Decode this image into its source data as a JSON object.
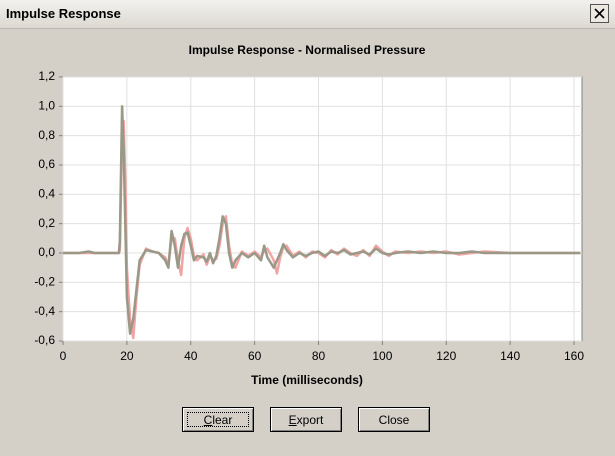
{
  "window": {
    "title": "Impulse Response"
  },
  "chart_data": {
    "type": "line",
    "title": "Impulse Response - Normalised Pressure",
    "x_label": "Time (milliseconds)",
    "x": [
      0,
      5,
      8,
      10,
      17.5,
      17.8,
      18.5,
      19,
      19.5,
      20,
      21,
      22,
      23,
      24,
      26,
      28,
      30,
      32,
      33,
      34,
      35,
      36,
      37,
      38,
      39,
      40,
      41,
      42,
      44,
      45,
      46,
      47,
      48,
      49,
      50,
      51,
      52,
      53,
      54,
      56,
      58,
      60,
      62,
      63,
      64,
      66,
      67,
      68,
      69,
      70,
      72,
      74,
      76,
      78,
      80,
      82,
      84,
      86,
      88,
      90,
      92,
      94,
      96,
      98,
      100,
      102,
      104,
      108,
      112,
      116,
      120,
      124,
      128,
      132,
      140,
      162
    ],
    "series": [
      {
        "color": "#f2a3a3",
        "values": [
          0,
          0,
          0,
          0,
          0,
          0.02,
          0.8,
          0.9,
          0.5,
          -0.1,
          -0.45,
          -0.58,
          -0.3,
          -0.08,
          0.03,
          0.01,
          0,
          -0.03,
          -0.08,
          0.1,
          0.1,
          -0.05,
          -0.15,
          0.1,
          0.17,
          0.1,
          -0.02,
          -0.05,
          -0.01,
          -0.08,
          -0.02,
          -0.05,
          -0.04,
          0.05,
          0.2,
          0.25,
          0.05,
          -0.08,
          -0.1,
          0.01,
          -0.02,
          0.01,
          -0.03,
          0.02,
          0.03,
          -0.05,
          -0.14,
          -0.03,
          0.04,
          0.05,
          -0.02,
          0.01,
          -0.03,
          0.01,
          0,
          -0.03,
          0.02,
          -0.01,
          0.03,
          0,
          -0.02,
          0.02,
          -0.02,
          0.05,
          0.01,
          -0.02,
          0.01,
          0,
          0.01,
          0,
          0.01,
          -0.01,
          0,
          0.01,
          0,
          0
        ]
      },
      {
        "color": "#9a9886",
        "values": [
          0,
          0,
          0.01,
          0,
          0,
          0.08,
          1.0,
          0.7,
          0.2,
          -0.3,
          -0.55,
          -0.45,
          -0.25,
          -0.05,
          0.02,
          0.01,
          0,
          -0.05,
          -0.1,
          0.15,
          0.05,
          -0.1,
          0.05,
          0.13,
          0.14,
          0.05,
          -0.05,
          -0.02,
          -0.03,
          -0.06,
          0,
          -0.07,
          -0.02,
          0.1,
          0.25,
          0.2,
          0,
          -0.1,
          -0.05,
          0,
          -0.03,
          0,
          -0.05,
          0.05,
          -0.03,
          -0.1,
          -0.05,
          0,
          0.06,
          0.02,
          -0.03,
          0,
          -0.02,
          0,
          0.01,
          -0.02,
          0.01,
          0,
          0.02,
          -0.01,
          0,
          0.01,
          -0.01,
          0.03,
          0,
          -0.01,
          0,
          0.01,
          0,
          0.01,
          0,
          0,
          0.01,
          0,
          0,
          0
        ]
      }
    ],
    "xlim": [
      0,
      162.5
    ],
    "ylim": [
      -0.6,
      1.2
    ],
    "xticks": [
      0,
      20,
      40,
      60,
      80,
      100,
      120,
      140,
      160
    ],
    "yticks": [
      {
        "value": 1.2,
        "label": "1,2"
      },
      {
        "value": 1.0,
        "label": "1,0"
      },
      {
        "value": 0.8,
        "label": "0,8"
      },
      {
        "value": 0.6,
        "label": "0,6"
      },
      {
        "value": 0.4,
        "label": "0,4"
      },
      {
        "value": 0.2,
        "label": "0,2"
      },
      {
        "value": 0.0,
        "label": "0,0"
      },
      {
        "value": -0.2,
        "label": "-0,2"
      },
      {
        "value": -0.4,
        "label": "-0,4"
      },
      {
        "value": -0.6,
        "label": "-0,6"
      }
    ],
    "grid": true
  },
  "buttons": [
    "Clear",
    "Export",
    "Close"
  ]
}
